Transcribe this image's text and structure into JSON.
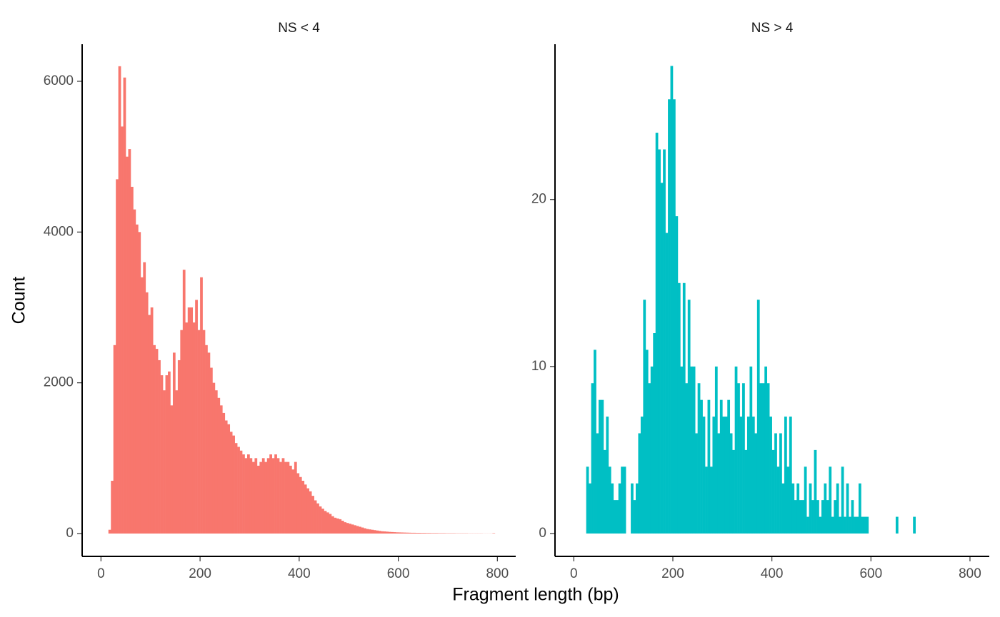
{
  "chart_data": [
    {
      "type": "histogram",
      "title": "NS < 4",
      "color": "#F8766D",
      "bins": [
        15,
        20,
        25,
        30,
        35,
        40,
        45,
        50,
        55,
        60,
        65,
        70,
        75,
        80,
        85,
        90,
        95,
        100,
        105,
        110,
        115,
        120,
        125,
        130,
        135,
        140,
        145,
        150,
        155,
        160,
        165,
        170,
        175,
        180,
        185,
        190,
        195,
        200,
        205,
        210,
        215,
        220,
        225,
        230,
        235,
        240,
        245,
        250,
        255,
        260,
        265,
        270,
        275,
        280,
        285,
        290,
        295,
        300,
        305,
        310,
        315,
        320,
        325,
        330,
        335,
        340,
        345,
        350,
        355,
        360,
        365,
        370,
        375,
        380,
        385,
        390,
        395,
        400,
        405,
        410,
        415,
        420,
        425,
        430,
        435,
        440,
        445,
        450,
        455,
        460,
        465,
        470,
        475,
        480,
        485,
        490,
        495,
        500,
        505,
        510,
        515,
        520,
        525,
        530,
        535,
        540,
        545,
        550,
        555,
        560,
        565,
        570,
        575,
        580,
        585,
        590,
        595,
        600,
        605,
        610,
        615,
        620,
        625,
        630,
        635,
        640,
        645,
        650,
        655,
        660,
        665,
        670,
        675,
        680,
        685,
        690,
        695,
        700,
        705,
        710,
        715,
        720,
        725,
        730,
        735,
        740,
        745,
        750,
        755,
        760,
        765,
        770,
        775,
        780,
        785,
        790,
        795
      ],
      "counts": [
        50,
        700,
        2500,
        4700,
        6200,
        5400,
        6050,
        5000,
        5100,
        4600,
        4300,
        4100,
        4000,
        3400,
        3600,
        3200,
        2900,
        3000,
        2500,
        2450,
        2300,
        2100,
        1900,
        2100,
        2150,
        1700,
        2400,
        1900,
        2300,
        2700,
        3500,
        2800,
        3000,
        3000,
        2800,
        3100,
        2700,
        3400,
        2700,
        2500,
        2400,
        2200,
        2000,
        1900,
        1800,
        1700,
        1600,
        1500,
        1450,
        1350,
        1300,
        1200,
        1150,
        1100,
        1050,
        1000,
        1050,
        1000,
        950,
        1000,
        900,
        950,
        1000,
        950,
        1000,
        1050,
        1000,
        1050,
        1000,
        950,
        1000,
        950,
        950,
        900,
        850,
        950,
        800,
        750,
        700,
        650,
        600,
        560,
        500,
        440,
        400,
        360,
        330,
        300,
        280,
        260,
        230,
        210,
        200,
        190,
        170,
        150,
        140,
        130,
        120,
        110,
        100,
        90,
        80,
        70,
        60,
        55,
        50,
        45,
        40,
        35,
        30,
        28,
        25,
        22,
        20,
        18,
        16,
        15,
        14,
        13,
        12,
        11,
        10,
        10,
        9,
        9,
        8,
        8,
        7,
        7,
        6,
        6,
        6,
        5,
        5,
        5,
        4,
        4,
        4,
        4,
        3,
        3,
        3,
        3,
        3,
        2,
        2,
        2,
        2,
        2,
        2,
        1,
        1,
        1,
        1,
        5
      ],
      "xlim": [
        -38,
        837
      ],
      "ylim": [
        -303,
        6492
      ],
      "xticks": [
        0,
        200,
        400,
        600,
        800
      ],
      "yticks": [
        0,
        2000,
        4000,
        6000
      ]
    },
    {
      "type": "histogram",
      "title": "NS > 4",
      "color": "#00BFC4",
      "bins": [
        25,
        30,
        35,
        40,
        45,
        50,
        55,
        60,
        65,
        70,
        75,
        80,
        85,
        90,
        95,
        100,
        105,
        110,
        115,
        120,
        125,
        130,
        135,
        140,
        145,
        150,
        155,
        160,
        165,
        170,
        175,
        180,
        185,
        190,
        195,
        200,
        205,
        210,
        215,
        220,
        225,
        230,
        235,
        240,
        245,
        250,
        255,
        260,
        265,
        270,
        275,
        280,
        285,
        290,
        295,
        300,
        305,
        310,
        315,
        320,
        325,
        330,
        335,
        340,
        345,
        350,
        355,
        360,
        365,
        370,
        375,
        380,
        385,
        390,
        395,
        400,
        405,
        410,
        415,
        420,
        425,
        430,
        435,
        440,
        445,
        450,
        455,
        460,
        465,
        470,
        475,
        480,
        485,
        490,
        495,
        500,
        505,
        510,
        515,
        520,
        525,
        530,
        535,
        540,
        545,
        550,
        555,
        560,
        565,
        570,
        575,
        580,
        585,
        590,
        595,
        600,
        605,
        610,
        615,
        620,
        625,
        630,
        635,
        640,
        645,
        650,
        655,
        660,
        665,
        670,
        675,
        680,
        685,
        690
      ],
      "counts": [
        4,
        3,
        9,
        11,
        6,
        8,
        8,
        5,
        7,
        4,
        3,
        2,
        2,
        3,
        4,
        4,
        0,
        0,
        3,
        2,
        3,
        6,
        7,
        14,
        11,
        9,
        10,
        12,
        24,
        23,
        21,
        23,
        18,
        26,
        28,
        26,
        19,
        15,
        10,
        15,
        9,
        14,
        10,
        10,
        6,
        9,
        8,
        7,
        4,
        8,
        4,
        7,
        10,
        6,
        8,
        7,
        7,
        8,
        6,
        5,
        10,
        9,
        7,
        9,
        5,
        7,
        10,
        7,
        6,
        14,
        9,
        9,
        10,
        9,
        7,
        5,
        6,
        4,
        6,
        3,
        7,
        4,
        7,
        3,
        2,
        3,
        2,
        2,
        4,
        1,
        3,
        2,
        5,
        2,
        1,
        2,
        3,
        2,
        4,
        1,
        2,
        3,
        1,
        4,
        1,
        3,
        1,
        2,
        1,
        1,
        3,
        1,
        1,
        1,
        0,
        0,
        0,
        0,
        0,
        0,
        0,
        0,
        0,
        0,
        0,
        1,
        0,
        0,
        0,
        0,
        0,
        0,
        1
      ],
      "xlim": [
        -38,
        839
      ],
      "ylim": [
        -1.37,
        29.3
      ],
      "xticks": [
        0,
        200,
        400,
        600,
        800
      ],
      "yticks": [
        0,
        10,
        20
      ]
    }
  ],
  "axis_labels": {
    "x": "Fragment length (bp)",
    "y": "Count"
  }
}
